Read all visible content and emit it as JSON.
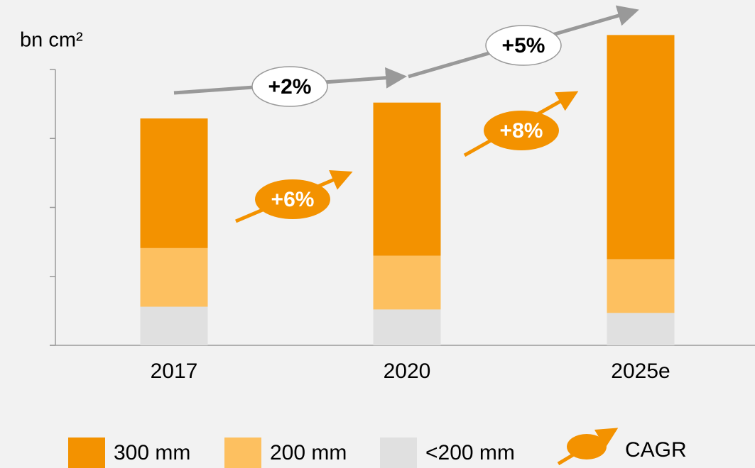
{
  "chart_data": {
    "type": "stacked_bar",
    "y_label": "bn cm²",
    "categories": [
      "2017",
      "2020",
      "2025e"
    ],
    "series": [
      {
        "name": "300 mm",
        "color": "#f39200",
        "values": [
          1.88,
          2.22,
          3.25
        ]
      },
      {
        "name": "200 mm",
        "color": "#fdc060",
        "values": [
          0.85,
          0.78,
          0.78
        ]
      },
      {
        "name": "<200 mm",
        "color": "#e0e0e0",
        "values": [
          0.56,
          0.52,
          0.47
        ]
      }
    ],
    "ylim": [
      0,
      4
    ],
    "yticks": [
      0,
      1,
      2,
      3,
      4
    ],
    "annotations": [
      {
        "text": "+2%"
      },
      {
        "text": "+5%"
      },
      {
        "text": "+6%"
      },
      {
        "text": "+8%"
      }
    ],
    "cagr_legend": "CAGR"
  }
}
